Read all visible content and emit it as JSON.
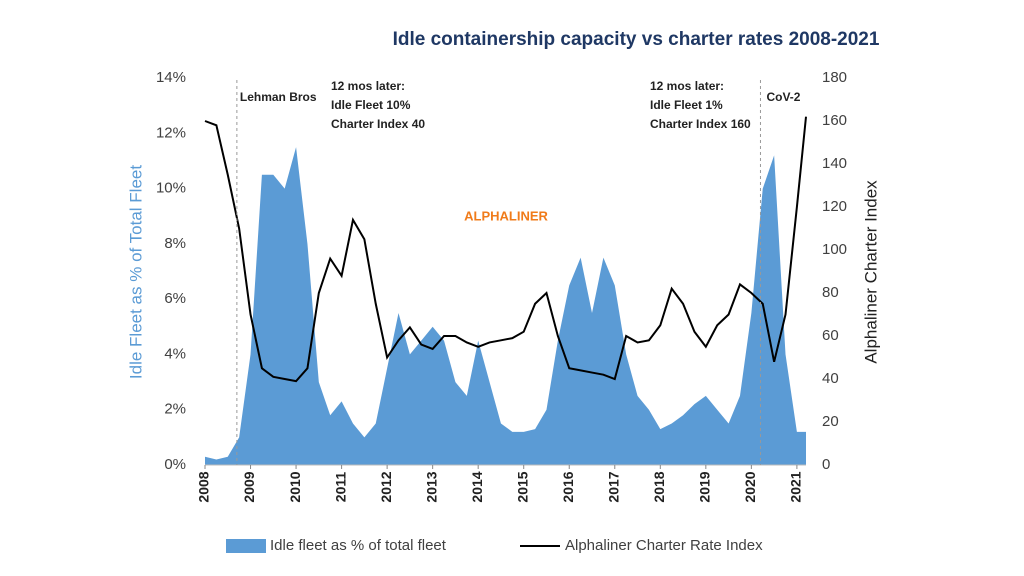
{
  "chart_data": {
    "type": "area-line",
    "title": "Idle containership capacity vs charter rates 2008-2021",
    "y_label": "Idle Fleet as % of Total Fleet",
    "y2_label": "Alphaliner Charter Index",
    "watermark": "ALPHALINER",
    "xlim": [
      2008,
      2021.2
    ],
    "xticks": [
      2008,
      2009,
      2010,
      2011,
      2012,
      2013,
      2014,
      2015,
      2016,
      2017,
      2018,
      2019,
      2020,
      2021
    ],
    "ylim": [
      0,
      14
    ],
    "yticks": [
      {
        "value": 0,
        "label": "0%"
      },
      {
        "value": 2,
        "label": "2%"
      },
      {
        "value": 4,
        "label": "4%"
      },
      {
        "value": 6,
        "label": "6%"
      },
      {
        "value": 8,
        "label": "8%"
      },
      {
        "value": 10,
        "label": "10%"
      },
      {
        "value": 12,
        "label": "12%"
      },
      {
        "value": 14,
        "label": "14%"
      }
    ],
    "y2lim": [
      0,
      180
    ],
    "y2ticks": [
      0,
      20,
      40,
      60,
      80,
      100,
      120,
      140,
      160,
      180
    ],
    "x": [
      2008,
      2008.25,
      2008.5,
      2008.75,
      2009,
      2009.25,
      2009.5,
      2009.75,
      2010,
      2010.25,
      2010.5,
      2010.75,
      2011,
      2011.25,
      2011.5,
      2011.75,
      2012,
      2012.25,
      2012.5,
      2012.75,
      2013,
      2013.25,
      2013.5,
      2013.75,
      2014,
      2014.25,
      2014.5,
      2014.75,
      2015,
      2015.25,
      2015.5,
      2015.75,
      2016,
      2016.25,
      2016.5,
      2016.75,
      2017,
      2017.25,
      2017.5,
      2017.75,
      2018,
      2018.25,
      2018.5,
      2018.75,
      2019,
      2019.25,
      2019.5,
      2019.75,
      2020,
      2020.25,
      2020.5,
      2020.75,
      2021,
      2021.2
    ],
    "series": [
      {
        "name": "Idle fleet as % of total fleet",
        "color": "#5b9bd5",
        "style": "area",
        "values": [
          0.3,
          0.2,
          0.3,
          1.0,
          4.0,
          10.5,
          10.5,
          10.0,
          11.5,
          8.0,
          3.0,
          1.8,
          2.3,
          1.5,
          1.0,
          1.5,
          3.5,
          5.5,
          4.0,
          4.5,
          5.0,
          4.5,
          3.0,
          2.5,
          4.5,
          3.0,
          1.5,
          1.2,
          1.2,
          1.3,
          2.0,
          4.5,
          6.5,
          7.5,
          5.5,
          7.5,
          6.5,
          4.0,
          2.5,
          2.0,
          1.3,
          1.5,
          1.8,
          2.2,
          2.5,
          2.0,
          1.5,
          2.5,
          5.5,
          10.0,
          11.2,
          4.0,
          1.2,
          1.2
        ]
      },
      {
        "name": "Alphaliner Charter Rate Index",
        "color": "#000000",
        "style": "line",
        "axis": "y2",
        "values": [
          160,
          158,
          135,
          110,
          70,
          45,
          41,
          40,
          39,
          45,
          80,
          96,
          88,
          114,
          105,
          75,
          50,
          58,
          64,
          56,
          54,
          60,
          60,
          57,
          55,
          57,
          58,
          59,
          62,
          75,
          80,
          60,
          45,
          44,
          43,
          42,
          40,
          60,
          57,
          58,
          65,
          82,
          75,
          62,
          55,
          65,
          70,
          84,
          80,
          75,
          48,
          70,
          120,
          162
        ]
      }
    ],
    "events": [
      {
        "x": 2008.7,
        "label": "Lehman Bros",
        "note": [
          "12 mos later:",
          "Idle Fleet 10%",
          "Charter Index 40"
        ]
      },
      {
        "x": 2020.2,
        "label": "CoV-2",
        "note": [
          "12 mos later:",
          "Idle Fleet 1%",
          "Charter Index 160"
        ]
      }
    ]
  }
}
